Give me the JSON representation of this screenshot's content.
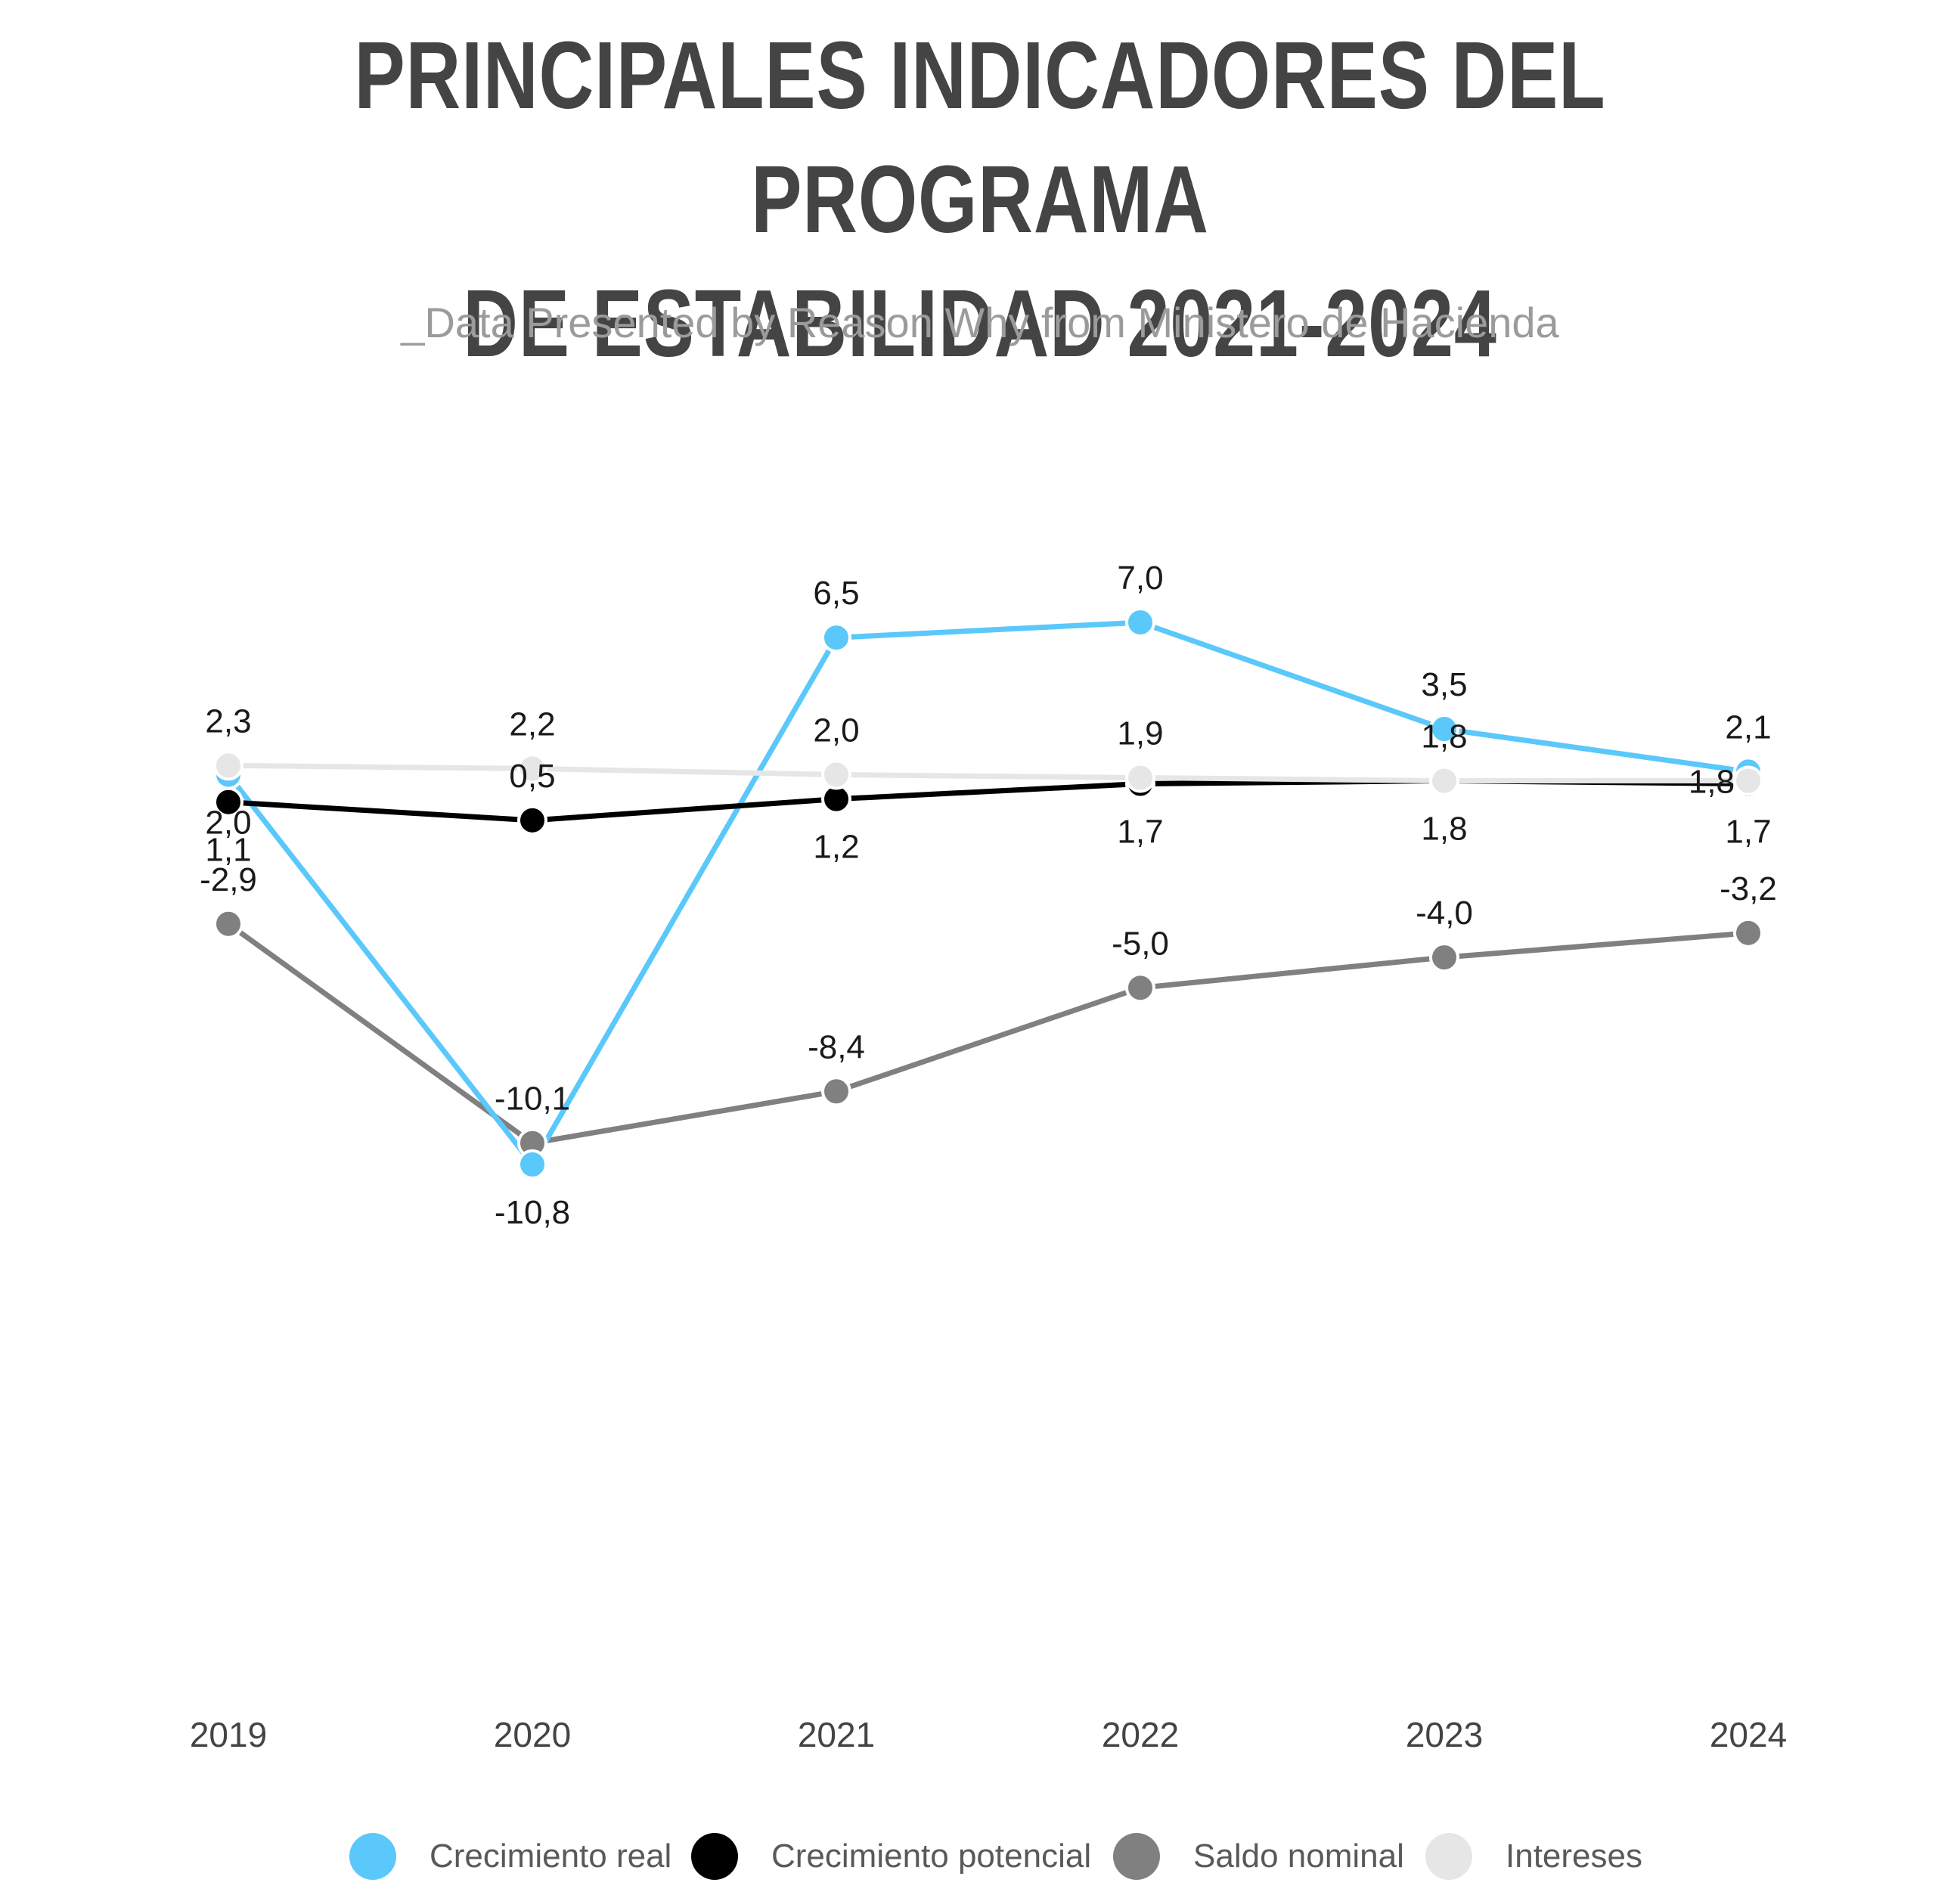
{
  "title_line1": "PRINCIPALES INDICADORES DEL PROGRAMA",
  "title_line2": "DE ESTABILIDAD 2021-2024",
  "subtitle": "_Data Presented by Reason Why from Ministero de Hacienda",
  "chart_data": {
    "type": "line",
    "categories": [
      "2019",
      "2020",
      "2021",
      "2022",
      "2023",
      "2024"
    ],
    "ylim": [
      -11.5,
      7.5
    ],
    "grid": false,
    "legend_position": "bottom",
    "series": [
      {
        "name": "Crecimiento real",
        "color": "#5ac8fa",
        "values": [
          2.0,
          -10.8,
          6.5,
          7.0,
          3.5,
          2.1
        ],
        "labels": [
          "2,0",
          "-10,8",
          "6,5",
          "7,0",
          "3,5",
          "2,1"
        ],
        "label_pos": [
          "below",
          "below",
          "above",
          "above",
          "above",
          "above"
        ]
      },
      {
        "name": "Crecimiento potencial",
        "color": "#000000",
        "values": [
          1.1,
          0.5,
          1.2,
          1.7,
          1.8,
          1.7
        ],
        "labels": [
          "1,1",
          "0,5",
          "1,2",
          "1,7",
          "1,8",
          "1,7"
        ],
        "label_pos": [
          "below",
          "above",
          "below",
          "below",
          "below",
          "below"
        ]
      },
      {
        "name": "Saldo nominal",
        "color": "#808080",
        "values": [
          -2.9,
          -10.1,
          -8.4,
          -5.0,
          -4.0,
          -3.2
        ],
        "labels": [
          "-2,9",
          "-10,1",
          "-8,4",
          "-5,0",
          "-4,0",
          "-3,2"
        ],
        "label_pos": [
          "above",
          "above",
          "above",
          "above",
          "above",
          "above"
        ]
      },
      {
        "name": "Intereses",
        "color": "#e6e6e6",
        "values": [
          2.3,
          2.2,
          2.0,
          1.9,
          1.8,
          1.8
        ],
        "labels": [
          "2,3",
          "2,2",
          "2,0",
          "1,9",
          "1,8",
          "1,8"
        ],
        "label_pos": [
          "above",
          "above",
          "above",
          "above",
          "above",
          "left"
        ]
      }
    ]
  }
}
